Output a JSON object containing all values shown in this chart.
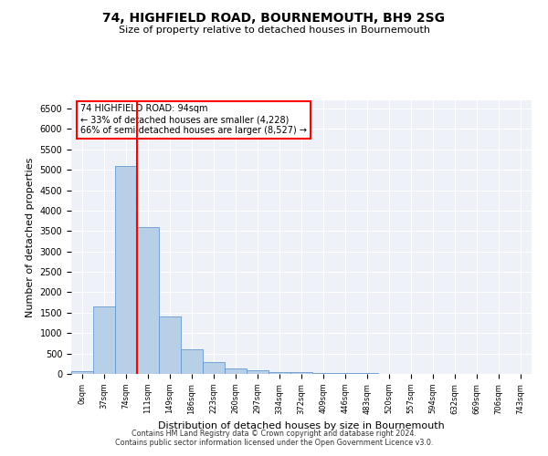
{
  "title": "74, HIGHFIELD ROAD, BOURNEMOUTH, BH9 2SG",
  "subtitle": "Size of property relative to detached houses in Bournemouth",
  "xlabel": "Distribution of detached houses by size in Bournemouth",
  "ylabel": "Number of detached properties",
  "bin_labels": [
    "0sqm",
    "37sqm",
    "74sqm",
    "111sqm",
    "149sqm",
    "186sqm",
    "223sqm",
    "260sqm",
    "297sqm",
    "334sqm",
    "372sqm",
    "409sqm",
    "446sqm",
    "483sqm",
    "520sqm",
    "557sqm",
    "594sqm",
    "632sqm",
    "669sqm",
    "706sqm",
    "743sqm"
  ],
  "bar_heights": [
    75,
    1650,
    5100,
    3600,
    1400,
    610,
    295,
    140,
    80,
    50,
    40,
    30,
    20,
    12,
    7,
    4,
    3,
    2,
    1,
    1,
    1
  ],
  "bar_color": "#b8cfe8",
  "bar_edge_color": "#6699cc",
  "red_line_index": 2,
  "annotation_line1": "74 HIGHFIELD ROAD: 94sqm",
  "annotation_line2": "← 33% of detached houses are smaller (4,228)",
  "annotation_line3": "66% of semi-detached houses are larger (8,527) →",
  "ylim": [
    0,
    6700
  ],
  "yticks": [
    0,
    500,
    1000,
    1500,
    2000,
    2500,
    3000,
    3500,
    4000,
    4500,
    5000,
    5500,
    6000,
    6500
  ],
  "bg_color": "#eef2f8",
  "footer_line1": "Contains HM Land Registry data © Crown copyright and database right 2024.",
  "footer_line2": "Contains public sector information licensed under the Open Government Licence v3.0."
}
